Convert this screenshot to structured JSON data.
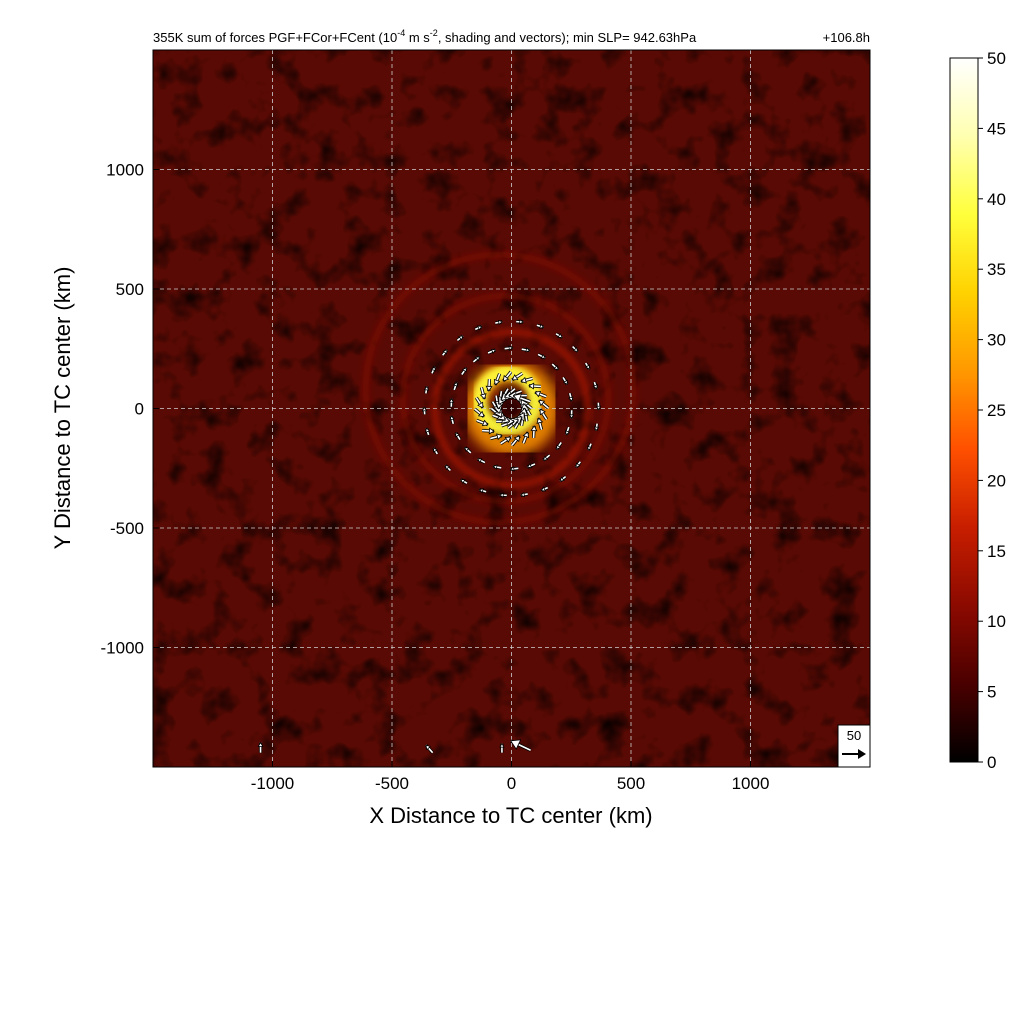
{
  "chart_data": {
    "type": "heatmap",
    "title_parts": {
      "prefix": "355K sum of forces PGF+FCor+FCent (10",
      "exp1": "-4",
      "mid": " m s",
      "exp2": "-2",
      "suffix": ", shading and vectors); min SLP= 942.63hPa",
      "time": "+106.8h"
    },
    "xlabel": "X Distance to TC center (km)",
    "ylabel": "Y Distance to TC center (km)",
    "xlim": [
      -1500,
      1500
    ],
    "ylim": [
      -1500,
      1500
    ],
    "xticks": [
      -1000,
      -500,
      0,
      500,
      1000
    ],
    "yticks": [
      -1000,
      -500,
      0,
      500,
      1000
    ],
    "grid": true,
    "colorbar": {
      "range": [
        0,
        50
      ],
      "ticks": [
        0,
        5,
        10,
        15,
        20,
        25,
        30,
        35,
        40,
        45,
        50
      ],
      "colors": [
        "#000000",
        "#4a0000",
        "#8c0a00",
        "#c81e00",
        "#ff5000",
        "#ff9900",
        "#ffd200",
        "#ffff3c",
        "#ffffb0",
        "#ffffff"
      ]
    },
    "features": {
      "core_ring_radius_km": 180,
      "core_peak_value": 40,
      "rainbands_km": [
        320,
        430,
        560
      ],
      "background_value": 7
    },
    "reference_vector": {
      "label": "50",
      "value": 50
    }
  }
}
